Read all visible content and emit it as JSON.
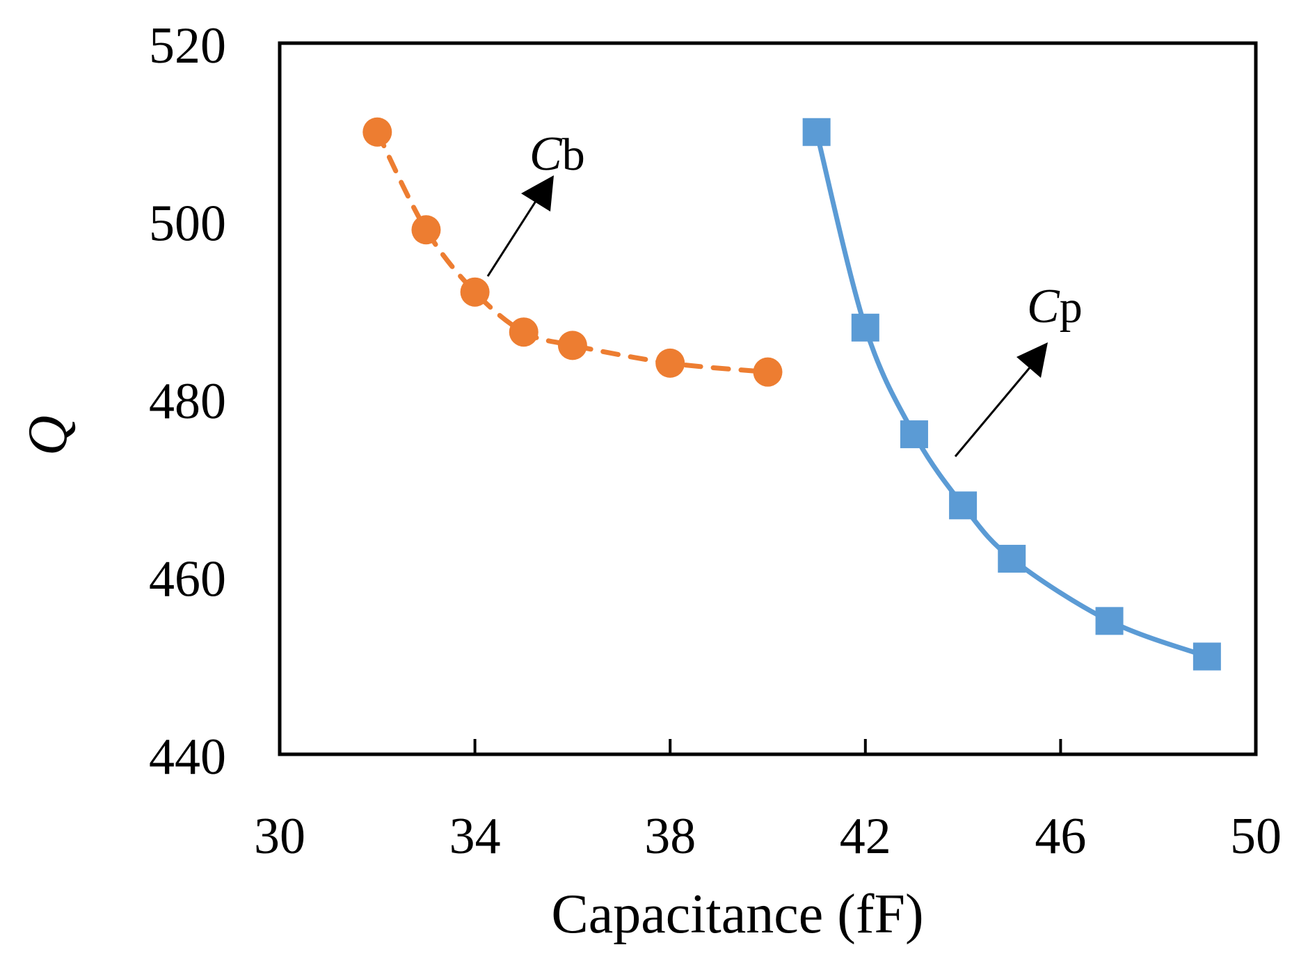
{
  "chart_data": {
    "type": "line",
    "title": "",
    "xlabel": "Capacitance (fF)",
    "ylabel": "Q",
    "xlim": [
      30,
      50
    ],
    "ylim": [
      440,
      520
    ],
    "xticks": [
      30,
      34,
      38,
      42,
      46,
      50
    ],
    "yticks": [
      440,
      460,
      480,
      500,
      520
    ],
    "grid": false,
    "legend": "none",
    "series": [
      {
        "name": "Cb",
        "label_main": "C",
        "label_sub": "b",
        "color": "#ED7D31",
        "marker": "circle",
        "line_style": "dashed",
        "x": [
          32,
          33,
          34,
          35,
          36,
          38,
          40
        ],
        "y": [
          510,
          499,
          492,
          487.5,
          486,
          484,
          483
        ]
      },
      {
        "name": "Cp",
        "label_main": "C",
        "label_sub": "p",
        "color": "#5B9BD5",
        "marker": "square",
        "line_style": "solid",
        "x": [
          41,
          42,
          43,
          44,
          45,
          47,
          49
        ],
        "y": [
          510,
          488,
          476,
          468,
          462,
          455,
          451
        ]
      }
    ]
  }
}
